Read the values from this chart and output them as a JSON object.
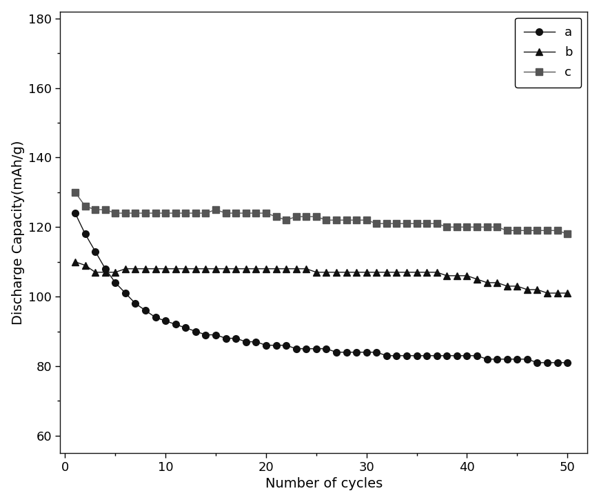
{
  "title": "",
  "xlabel": "Number of cycles",
  "ylabel": "Discharge Capacity(mAh/g)",
  "xlim": [
    -0.5,
    52
  ],
  "ylim": [
    55,
    182
  ],
  "yticks": [
    60,
    80,
    100,
    120,
    140,
    160,
    180
  ],
  "xticks": [
    0,
    10,
    20,
    30,
    40,
    50
  ],
  "series_a": {
    "label": "a",
    "marker": "o",
    "color": "#111111",
    "x": [
      1,
      2,
      3,
      4,
      5,
      6,
      7,
      8,
      9,
      10,
      11,
      12,
      13,
      14,
      15,
      16,
      17,
      18,
      19,
      20,
      21,
      22,
      23,
      24,
      25,
      26,
      27,
      28,
      29,
      30,
      31,
      32,
      33,
      34,
      35,
      36,
      37,
      38,
      39,
      40,
      41,
      42,
      43,
      44,
      45,
      46,
      47,
      48,
      49,
      50
    ],
    "y": [
      124,
      118,
      113,
      108,
      104,
      101,
      98,
      96,
      94,
      93,
      92,
      91,
      90,
      89,
      89,
      88,
      88,
      87,
      87,
      86,
      86,
      86,
      85,
      85,
      85,
      85,
      84,
      84,
      84,
      84,
      84,
      83,
      83,
      83,
      83,
      83,
      83,
      83,
      83,
      83,
      83,
      82,
      82,
      82,
      82,
      82,
      81,
      81,
      81,
      81
    ]
  },
  "series_b": {
    "label": "b",
    "marker": "^",
    "color": "#111111",
    "x": [
      1,
      2,
      3,
      4,
      5,
      6,
      7,
      8,
      9,
      10,
      11,
      12,
      13,
      14,
      15,
      16,
      17,
      18,
      19,
      20,
      21,
      22,
      23,
      24,
      25,
      26,
      27,
      28,
      29,
      30,
      31,
      32,
      33,
      34,
      35,
      36,
      37,
      38,
      39,
      40,
      41,
      42,
      43,
      44,
      45,
      46,
      47,
      48,
      49,
      50
    ],
    "y": [
      110,
      109,
      107,
      107,
      107,
      108,
      108,
      108,
      108,
      108,
      108,
      108,
      108,
      108,
      108,
      108,
      108,
      108,
      108,
      108,
      108,
      108,
      108,
      108,
      107,
      107,
      107,
      107,
      107,
      107,
      107,
      107,
      107,
      107,
      107,
      107,
      107,
      106,
      106,
      106,
      105,
      104,
      104,
      103,
      103,
      102,
      102,
      101,
      101,
      101
    ]
  },
  "series_c": {
    "label": "c",
    "marker": "s",
    "color": "#555555",
    "x": [
      1,
      2,
      3,
      4,
      5,
      6,
      7,
      8,
      9,
      10,
      11,
      12,
      13,
      14,
      15,
      16,
      17,
      18,
      19,
      20,
      21,
      22,
      23,
      24,
      25,
      26,
      27,
      28,
      29,
      30,
      31,
      32,
      33,
      34,
      35,
      36,
      37,
      38,
      39,
      40,
      41,
      42,
      43,
      44,
      45,
      46,
      47,
      48,
      49,
      50
    ],
    "y": [
      130,
      126,
      125,
      125,
      124,
      124,
      124,
      124,
      124,
      124,
      124,
      124,
      124,
      124,
      125,
      124,
      124,
      124,
      124,
      124,
      123,
      122,
      123,
      123,
      123,
      122,
      122,
      122,
      122,
      122,
      121,
      121,
      121,
      121,
      121,
      121,
      121,
      120,
      120,
      120,
      120,
      120,
      120,
      119,
      119,
      119,
      119,
      119,
      119,
      118
    ]
  },
  "legend_fontsize": 13,
  "axis_fontsize": 14,
  "tick_fontsize": 13,
  "markersize_a": 7,
  "markersize_b": 7,
  "markersize_c": 7,
  "linewidth": 1.0
}
